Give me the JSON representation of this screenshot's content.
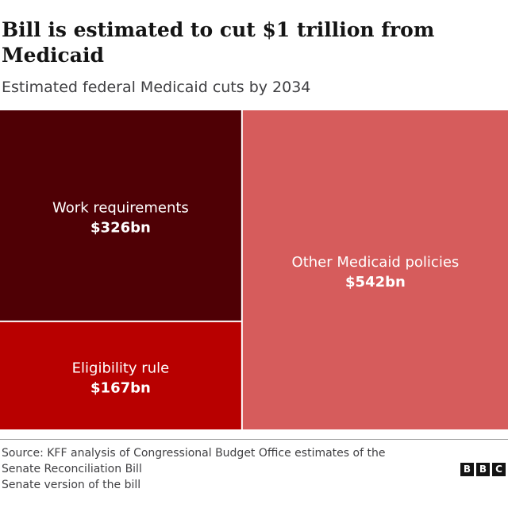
{
  "chart_data": {
    "type": "treemap",
    "title": "Bill is estimated to cut $1 trillion from Medicaid",
    "subtitle": "Estimated federal Medicaid cuts by 2034",
    "unit": "bn",
    "items": [
      {
        "label": "Work requirements",
        "value": 326,
        "value_label": "$326bn",
        "color": "#4f0005"
      },
      {
        "label": "Eligibility rule",
        "value": 167,
        "value_label": "$167bn",
        "color": "#b80000"
      },
      {
        "label": "Other Medicaid policies",
        "value": 542,
        "value_label": "$542bn",
        "color": "#d65c5c"
      }
    ]
  },
  "source": {
    "line1": "Source: KFF analysis of Congressional Budget Office estimates of the",
    "line2": "Senate Reconciliation Bill",
    "line3": "Senate version of the bill"
  },
  "logo": {
    "letters": [
      "B",
      "B",
      "C"
    ]
  }
}
